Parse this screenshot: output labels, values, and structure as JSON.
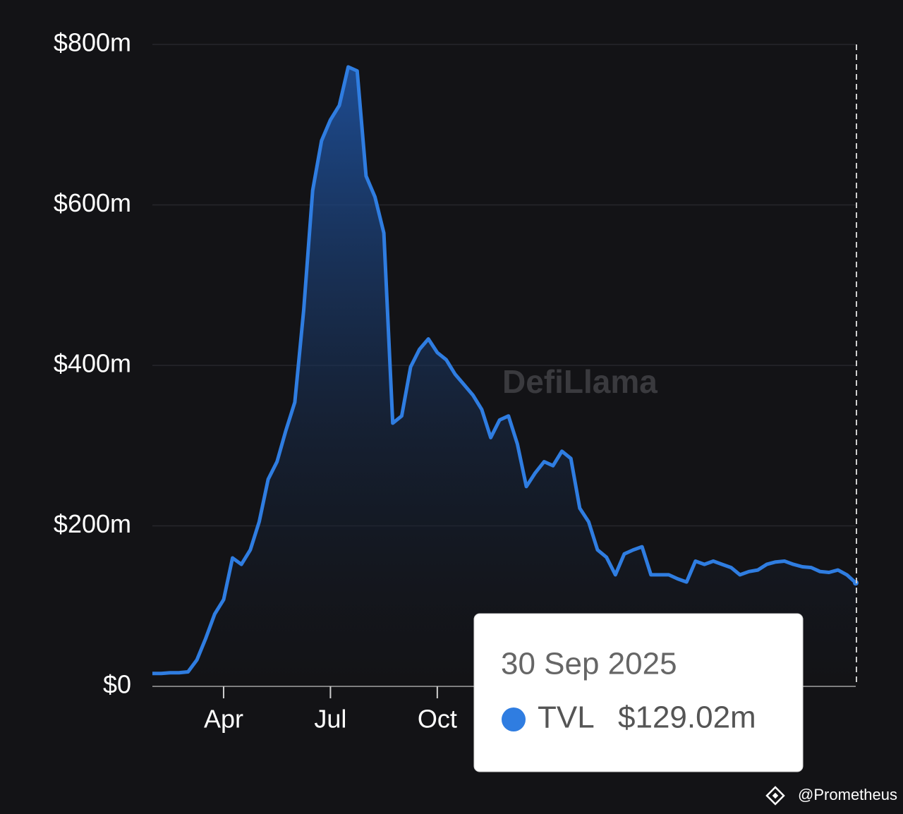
{
  "chart_data": {
    "type": "area",
    "series": [
      {
        "name": "TVL",
        "color": "#2f7de1",
        "values": [
          16,
          16,
          17,
          17,
          18,
          33,
          60,
          90,
          108,
          160,
          152,
          170,
          205,
          258,
          280,
          319,
          354,
          469,
          618,
          680,
          706,
          724,
          772,
          767,
          636,
          610,
          565,
          328,
          337,
          398,
          420,
          433,
          416,
          407,
          389,
          376,
          363,
          345,
          310,
          332,
          337,
          302,
          249,
          266,
          280,
          275,
          293,
          284,
          222,
          205,
          170,
          161,
          139,
          165,
          170,
          174,
          139,
          139,
          139,
          134,
          130,
          156,
          152,
          156,
          152,
          148,
          139,
          143,
          145,
          152,
          155,
          156,
          152,
          149,
          148,
          143,
          142,
          145,
          139,
          129.02
        ]
      }
    ],
    "categories": [
      null,
      null,
      null,
      null,
      null,
      null,
      null,
      null,
      "Apr",
      null,
      null,
      null,
      null,
      null,
      null,
      null,
      null,
      null,
      null,
      null,
      "Jul",
      null,
      null,
      null,
      null,
      null,
      null,
      null,
      null,
      null,
      null,
      null,
      "Oct",
      null,
      null,
      null,
      null,
      null,
      null,
      null,
      null,
      null,
      null,
      null,
      null,
      null,
      null,
      null,
      null,
      null,
      null,
      null,
      null,
      null,
      null,
      null,
      null,
      null,
      null,
      null,
      null,
      null,
      null,
      null,
      null,
      null,
      null,
      null,
      null,
      null,
      null,
      null,
      null,
      null,
      null,
      null,
      null,
      null,
      null,
      null
    ],
    "ylim": [
      0,
      800
    ],
    "yticks": [
      {
        "value": 0,
        "label": "$0"
      },
      {
        "value": 200,
        "label": "$200m"
      },
      {
        "value": 400,
        "label": "$400m"
      },
      {
        "value": 600,
        "label": "$600m"
      },
      {
        "value": 800,
        "label": "$800m"
      }
    ],
    "grid": true,
    "tooltip": {
      "date": "30 Sep 2025",
      "value_label": "$129.02m"
    },
    "watermark": "DefiLlama",
    "credit": "@Prometheus"
  }
}
